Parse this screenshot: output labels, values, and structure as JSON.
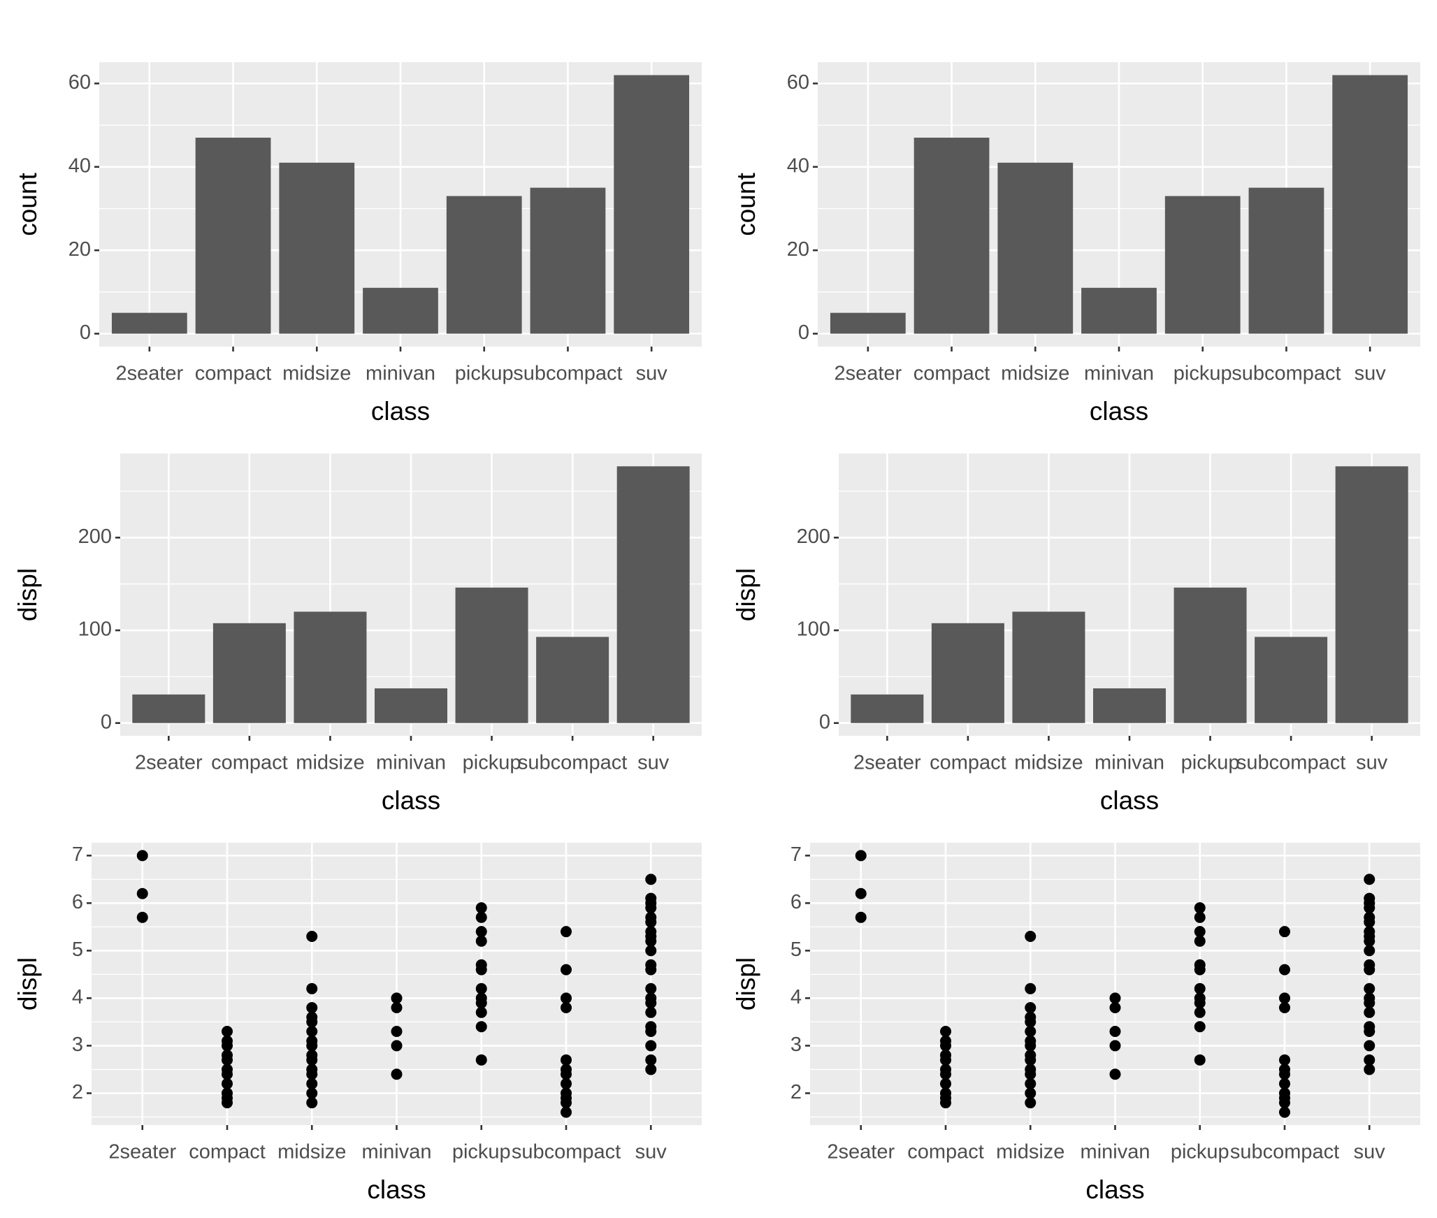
{
  "chart_data": [
    {
      "type": "bar",
      "xlabel": "class",
      "ylabel": "count",
      "categories": [
        "2seater",
        "compact",
        "midsize",
        "minivan",
        "pickup",
        "subcompact",
        "suv"
      ],
      "values": [
        5,
        47,
        41,
        11,
        33,
        35,
        62
      ],
      "color": "#595959",
      "ylim": [
        -3.1,
        65.1
      ],
      "yticks": [
        0,
        20,
        40,
        60
      ],
      "grid": true
    },
    {
      "type": "bar",
      "xlabel": "class",
      "ylabel": "count",
      "categories": [
        "2seater",
        "compact",
        "midsize",
        "minivan",
        "pickup",
        "subcompact",
        "suv"
      ],
      "values": [
        5,
        47,
        41,
        11,
        33,
        35,
        62
      ],
      "color": "#595959",
      "ylim": [
        -3.1,
        65.1
      ],
      "yticks": [
        0,
        20,
        40,
        60
      ],
      "grid": true
    },
    {
      "type": "bar",
      "xlabel": "class",
      "ylabel": "displ",
      "categories": [
        "2seater",
        "compact",
        "midsize",
        "minivan",
        "pickup",
        "subcompact",
        "suv"
      ],
      "values": [
        30.8,
        107.7,
        120.1,
        37.4,
        146.1,
        92.9,
        276.9
      ],
      "color": "#595959",
      "ylim": [
        -13.8,
        290.7
      ],
      "yticks": [
        0,
        100,
        200
      ],
      "grid": true
    },
    {
      "type": "bar",
      "xlabel": "class",
      "ylabel": "displ",
      "categories": [
        "2seater",
        "compact",
        "midsize",
        "minivan",
        "pickup",
        "subcompact",
        "suv"
      ],
      "values": [
        30.8,
        107.7,
        120.1,
        37.4,
        146.1,
        92.9,
        276.9
      ],
      "color": "#595959",
      "ylim": [
        -13.8,
        290.7
      ],
      "yticks": [
        0,
        100,
        200
      ],
      "grid": true
    },
    {
      "type": "scatter",
      "xlabel": "class",
      "ylabel": "displ",
      "categories": [
        "2seater",
        "compact",
        "midsize",
        "minivan",
        "pickup",
        "subcompact",
        "suv"
      ],
      "color": "#000000",
      "ylim": [
        1.33,
        7.27
      ],
      "yticks": [
        2,
        3,
        4,
        5,
        6,
        7
      ],
      "grid": true,
      "x": [
        "2seater",
        "2seater",
        "2seater",
        "compact",
        "compact",
        "compact",
        "compact",
        "compact",
        "compact",
        "compact",
        "compact",
        "compact",
        "compact",
        "compact",
        "midsize",
        "midsize",
        "midsize",
        "midsize",
        "midsize",
        "midsize",
        "midsize",
        "midsize",
        "midsize",
        "midsize",
        "midsize",
        "midsize",
        "midsize",
        "midsize",
        "midsize",
        "minivan",
        "minivan",
        "minivan",
        "minivan",
        "minivan",
        "pickup",
        "pickup",
        "pickup",
        "pickup",
        "pickup",
        "pickup",
        "pickup",
        "pickup",
        "pickup",
        "pickup",
        "pickup",
        "pickup",
        "subcompact",
        "subcompact",
        "subcompact",
        "subcompact",
        "subcompact",
        "subcompact",
        "subcompact",
        "subcompact",
        "subcompact",
        "subcompact",
        "subcompact",
        "subcompact",
        "suv",
        "suv",
        "suv",
        "suv",
        "suv",
        "suv",
        "suv",
        "suv",
        "suv",
        "suv",
        "suv",
        "suv",
        "suv",
        "suv",
        "suv",
        "suv",
        "suv",
        "suv",
        "suv",
        "suv",
        "suv"
      ],
      "values": [
        7.0,
        6.2,
        5.7,
        1.8,
        1.9,
        2.0,
        2.2,
        2.4,
        2.5,
        2.7,
        2.8,
        3.0,
        3.1,
        3.3,
        1.8,
        2.0,
        2.2,
        2.4,
        2.5,
        2.7,
        2.8,
        3.0,
        3.1,
        3.3,
        3.5,
        3.6,
        3.8,
        4.2,
        5.3,
        2.4,
        3.0,
        3.3,
        3.8,
        4.0,
        2.7,
        3.4,
        3.7,
        3.9,
        4.0,
        4.2,
        4.6,
        4.7,
        5.2,
        5.4,
        5.7,
        5.9,
        1.6,
        1.8,
        1.9,
        2.0,
        2.2,
        2.4,
        2.5,
        2.7,
        3.8,
        4.0,
        4.6,
        5.4,
        2.5,
        2.7,
        3.0,
        3.3,
        3.4,
        3.7,
        3.9,
        4.0,
        4.2,
        4.6,
        4.7,
        5.0,
        5.2,
        5.3,
        5.4,
        5.6,
        5.7,
        5.9,
        6.0,
        6.1,
        6.5
      ]
    },
    {
      "type": "scatter",
      "xlabel": "class",
      "ylabel": "displ",
      "categories": [
        "2seater",
        "compact",
        "midsize",
        "minivan",
        "pickup",
        "subcompact",
        "suv"
      ],
      "color": "#000000",
      "ylim": [
        1.33,
        7.27
      ],
      "yticks": [
        2,
        3,
        4,
        5,
        6,
        7
      ],
      "grid": true,
      "x": [
        "2seater",
        "2seater",
        "2seater",
        "compact",
        "compact",
        "compact",
        "compact",
        "compact",
        "compact",
        "compact",
        "compact",
        "compact",
        "compact",
        "compact",
        "midsize",
        "midsize",
        "midsize",
        "midsize",
        "midsize",
        "midsize",
        "midsize",
        "midsize",
        "midsize",
        "midsize",
        "midsize",
        "midsize",
        "midsize",
        "midsize",
        "midsize",
        "minivan",
        "minivan",
        "minivan",
        "minivan",
        "minivan",
        "pickup",
        "pickup",
        "pickup",
        "pickup",
        "pickup",
        "pickup",
        "pickup",
        "pickup",
        "pickup",
        "pickup",
        "pickup",
        "pickup",
        "subcompact",
        "subcompact",
        "subcompact",
        "subcompact",
        "subcompact",
        "subcompact",
        "subcompact",
        "subcompact",
        "subcompact",
        "subcompact",
        "subcompact",
        "subcompact",
        "suv",
        "suv",
        "suv",
        "suv",
        "suv",
        "suv",
        "suv",
        "suv",
        "suv",
        "suv",
        "suv",
        "suv",
        "suv",
        "suv",
        "suv",
        "suv",
        "suv",
        "suv",
        "suv",
        "suv",
        "suv"
      ],
      "values": [
        7.0,
        6.2,
        5.7,
        1.8,
        1.9,
        2.0,
        2.2,
        2.4,
        2.5,
        2.7,
        2.8,
        3.0,
        3.1,
        3.3,
        1.8,
        2.0,
        2.2,
        2.4,
        2.5,
        2.7,
        2.8,
        3.0,
        3.1,
        3.3,
        3.5,
        3.6,
        3.8,
        4.2,
        5.3,
        2.4,
        3.0,
        3.3,
        3.8,
        4.0,
        2.7,
        3.4,
        3.7,
        3.9,
        4.0,
        4.2,
        4.6,
        4.7,
        5.2,
        5.4,
        5.7,
        5.9,
        1.6,
        1.8,
        1.9,
        2.0,
        2.2,
        2.4,
        2.5,
        2.7,
        3.8,
        4.0,
        4.6,
        5.4,
        2.5,
        2.7,
        3.0,
        3.3,
        3.4,
        3.7,
        3.9,
        4.0,
        4.2,
        4.6,
        4.7,
        5.0,
        5.2,
        5.3,
        5.4,
        5.6,
        5.7,
        5.9,
        6.0,
        6.1,
        6.5
      ]
    }
  ]
}
